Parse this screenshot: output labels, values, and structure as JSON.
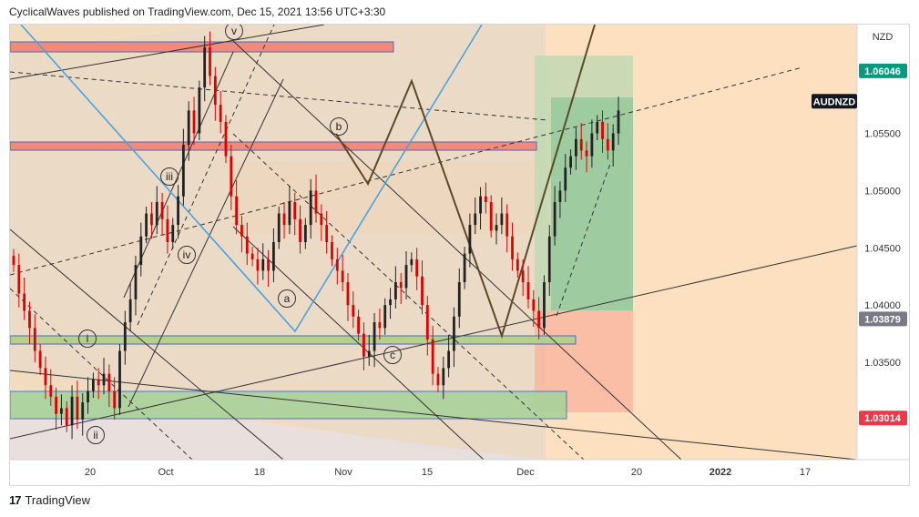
{
  "header": {
    "text": "CyclicalWaves published on TradingView.com, Dec 15, 2021 13:56 UTC+3:30"
  },
  "footer": {
    "logo_glyph": "17",
    "brand": "TradingView"
  },
  "colors": {
    "up": "#222222",
    "down": "#e00000",
    "zone_orange": "#fbd5a8",
    "zone_gray": "#cfcfcf",
    "support_green": "#9ccf8a",
    "resistance_red": "#f28a7a",
    "wave_blue": "#4aa3e0",
    "zigzag_brown": "#5a4a2a",
    "label_green": "#089981",
    "label_gray": "#787b86",
    "label_red": "#f23645",
    "label_black": "#131722"
  },
  "chart_data": {
    "type": "candlestick",
    "symbol": "AUDNZD",
    "currency": "NZD",
    "x_ticks": [
      "20",
      "Oct",
      "18",
      "Nov",
      "15",
      "Dec",
      "20",
      "2022",
      "17"
    ],
    "y_ticks": [
      "1.03500",
      "1.04000",
      "1.04500",
      "1.05000",
      "1.05500"
    ],
    "y_range": [
      1.0265,
      1.0645
    ],
    "price_labels": [
      {
        "text": "1.06046",
        "value": 1.06046,
        "role": "target"
      },
      {
        "text": "AUDNZD",
        "value": 1.0578,
        "role": "symbol"
      },
      {
        "text": "1.03879",
        "value": 1.03879,
        "role": "entry"
      },
      {
        "text": "1.03014",
        "value": 1.03014,
        "role": "stop"
      }
    ],
    "wave_labels": [
      "v",
      "iii",
      "iv",
      "i",
      "ii",
      "b",
      "a",
      "c"
    ],
    "closes": [
      1.0435,
      1.041,
      1.0395,
      1.038,
      1.036,
      1.0345,
      1.033,
      1.032,
      1.0305,
      1.031,
      1.0295,
      1.032,
      1.03,
      1.0315,
      1.0325,
      1.0335,
      1.033,
      1.034,
      1.0325,
      1.031,
      1.036,
      1.0385,
      1.0405,
      1.0435,
      1.046,
      1.048,
      1.047,
      1.049,
      1.0475,
      1.0455,
      1.047,
      1.0495,
      1.054,
      1.057,
      1.055,
      1.059,
      1.0625,
      1.06,
      1.0575,
      1.056,
      1.053,
      1.0495,
      1.047,
      1.046,
      1.0445,
      1.044,
      1.043,
      1.044,
      1.043,
      1.0455,
      1.048,
      1.047,
      1.049,
      1.0475,
      1.0455,
      1.047,
      1.05,
      1.048,
      1.047,
      1.0455,
      1.044,
      1.043,
      1.042,
      1.04,
      1.039,
      1.0375,
      1.0355,
      1.036,
      1.0385,
      1.038,
      1.04,
      1.0405,
      1.042,
      1.0415,
      1.0435,
      1.044,
      1.0425,
      1.04,
      1.037,
      1.034,
      1.033,
      1.0345,
      1.036,
      1.039,
      1.042,
      1.0445,
      1.047,
      1.048,
      1.0495,
      1.049,
      1.0465,
      1.047,
      1.048,
      1.046,
      1.044,
      1.043,
      1.042,
      1.0405,
      1.0395,
      1.038,
      1.042,
      1.046,
      1.049,
      1.05,
      1.052,
      1.053,
      1.0545,
      1.0535,
      1.053,
      1.055,
      1.056,
      1.0545,
      1.0535,
      1.055,
      1.057
    ]
  }
}
